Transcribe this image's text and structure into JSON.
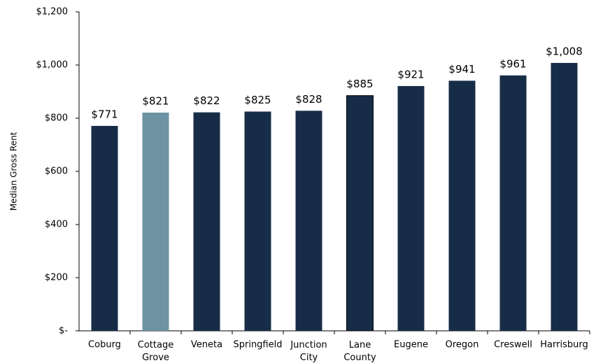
{
  "chart_data": {
    "type": "bar",
    "y_label": "Median Gross Rent",
    "categories": [
      "Coburg",
      "Cottage Grove",
      "Veneta",
      "Springfield",
      "Junction City",
      "Lane County",
      "Eugene",
      "Oregon",
      "Creswell",
      "Harrisburg"
    ],
    "values": [
      771,
      821,
      822,
      825,
      828,
      885,
      921,
      941,
      961,
      1008
    ],
    "value_labels": [
      "$771",
      "$821",
      "$822",
      "$825",
      "$828",
      "$885",
      "$921",
      "$941",
      "$961",
      "$1,008"
    ],
    "colors": [
      "#172d47",
      "#6e93a3",
      "#172d47",
      "#172d47",
      "#172d47",
      "#172d47",
      "#172d47",
      "#172d47",
      "#172d47",
      "#172d47"
    ],
    "ylim": [
      0,
      1200
    ],
    "yticks": [
      {
        "value": 0,
        "label": "$-"
      },
      {
        "value": 200,
        "label": "$200"
      },
      {
        "value": 400,
        "label": "$400"
      },
      {
        "value": 600,
        "label": "$600"
      },
      {
        "value": 800,
        "label": "$800"
      },
      {
        "value": 1000,
        "label": "$1,000"
      },
      {
        "value": 1200,
        "label": "$1,200"
      }
    ]
  }
}
